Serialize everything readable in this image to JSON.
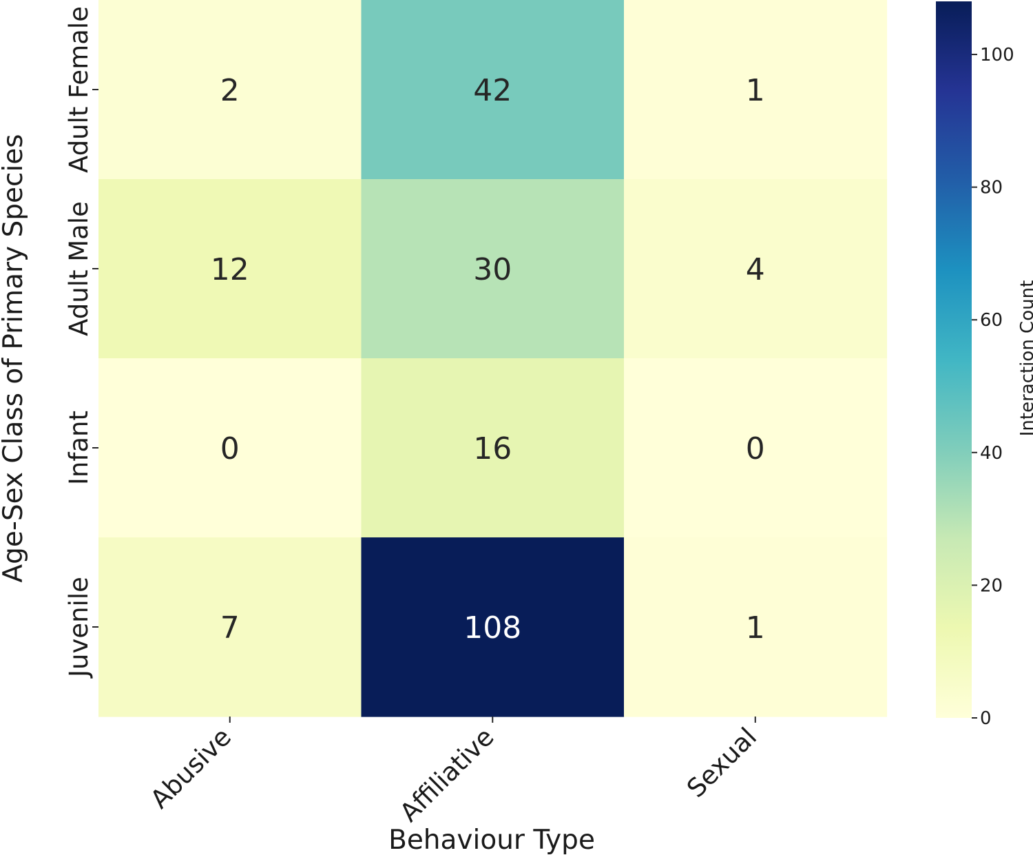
{
  "chart_data": {
    "type": "heatmap",
    "xlabel": "Behaviour Type",
    "ylabel": "Age-Sex Class of Primary Species",
    "x_categories": [
      "Abusive",
      "Affiliative",
      "Sexual"
    ],
    "y_categories": [
      "Adult Female",
      "Adult Male",
      "Infant",
      "Juvenile"
    ],
    "values": [
      [
        2,
        42,
        1
      ],
      [
        12,
        30,
        4
      ],
      [
        0,
        16,
        0
      ],
      [
        7,
        108,
        1
      ]
    ],
    "colorbar": {
      "label": "Interaction Count",
      "range": [
        0,
        108
      ],
      "ticks": [
        0,
        20,
        40,
        60,
        80,
        100
      ],
      "colormap": "YlGnBu",
      "colors": [
        "#ffffd9",
        "#edf8b1",
        "#c7e9b4",
        "#7fcdbb",
        "#41b6c4",
        "#1d91c0",
        "#225ea8",
        "#253494",
        "#081d58"
      ]
    },
    "annotation_colors": {
      "dark_text": "#262626",
      "light_text": "#ffffff"
    }
  }
}
